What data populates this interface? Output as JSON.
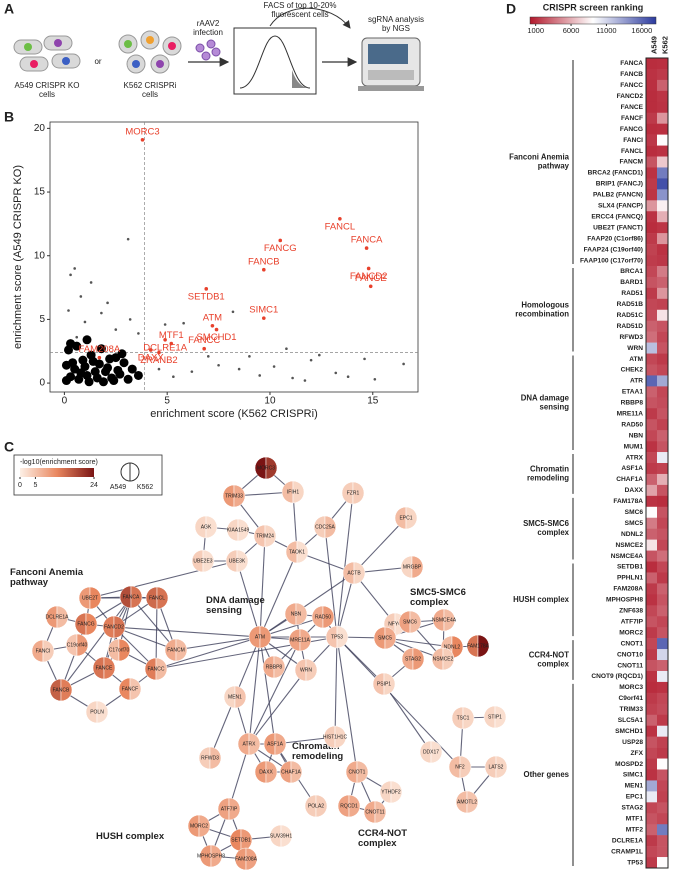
{
  "panel_labels": [
    "A",
    "B",
    "C",
    "D"
  ],
  "schematic": {
    "cells_a": "A549 CRISPR KO cells",
    "or": "or",
    "cells_k": "K562 CRISPRi cells",
    "infection": "rAAV2 infection",
    "facs": "FACS of top 10-20% fluorescent cells",
    "ngs": "sgRNA analysis by NGS"
  },
  "chart_data": [
    {
      "type": "scatter",
      "xlabel": "enrichment score (K562 CRISPRi)",
      "ylabel": "enrichment score (A549 CRISPR KO)",
      "xlim": [
        -0.7,
        17.2
      ],
      "ylim": [
        -0.7,
        20.5
      ],
      "xticks": [
        0,
        5,
        10,
        15
      ],
      "yticks": [
        0,
        5,
        10,
        15,
        20
      ],
      "cutoff_x": 3.9,
      "cutoff_y": 2.4,
      "cloud": {
        "color": "#000000",
        "x": [
          0.1,
          0.3,
          0.5,
          0.7,
          0.9,
          1.1,
          1.3,
          1.5,
          1.7,
          1.9,
          2.1,
          2.3,
          2.5,
          2.7,
          2.9,
          3.1,
          0.2,
          0.4,
          0.6,
          0.8,
          1.0,
          1.2,
          1.4,
          1.6,
          1.8,
          2.0,
          2.2,
          2.4,
          2.6,
          2.8,
          3.3,
          3.6,
          0.1,
          0.3,
          1.1
        ],
        "y": [
          0.2,
          0.5,
          1.1,
          0.3,
          1.8,
          0.6,
          2.2,
          0.9,
          1.5,
          0.1,
          1.2,
          0.4,
          2.0,
          0.7,
          1.6,
          0.3,
          2.6,
          1.6,
          2.9,
          0.8,
          1.3,
          0.1,
          1.7,
          0.4,
          2.7,
          0.9,
          1.9,
          0.2,
          1.0,
          2.3,
          1.1,
          0.6,
          1.4,
          3.1,
          3.4
        ]
      },
      "outliers": {
        "color": "#555555",
        "x": [
          0.5,
          0.3,
          1.3,
          0.8,
          2.1,
          3.1,
          1.8,
          0.2,
          3.2,
          4.9,
          5.8,
          8.2,
          7.0,
          7.5,
          8.5,
          9.5,
          10.2,
          11.1,
          12.0,
          12.4,
          13.2,
          14.6,
          15.1,
          16.5,
          6.2,
          9.0,
          10.8,
          4.6,
          5.3,
          11.7,
          13.8,
          3.6,
          2.5,
          1.0,
          0.6
        ],
        "y": [
          9.0,
          8.5,
          7.9,
          6.8,
          6.3,
          11.3,
          5.5,
          5.7,
          5.0,
          4.6,
          4.7,
          5.6,
          2.1,
          1.4,
          1.1,
          0.6,
          1.3,
          0.4,
          1.8,
          2.2,
          0.8,
          1.9,
          0.3,
          1.5,
          0.9,
          2.1,
          2.7,
          1.1,
          0.5,
          0.2,
          0.5,
          3.9,
          4.2,
          4.8,
          3.6
        ]
      },
      "hits": {
        "color": "#e8412c",
        "labels": [
          "MORC3",
          "FANCL",
          "FANCA",
          "FANCG",
          "FANCB",
          "FANCD2",
          "FANCE",
          "SETDB1",
          "SIMC1",
          "SMCHD1",
          "ATM",
          "DCLRE1A",
          "MTF1",
          "DAXX",
          "FAM208A",
          "ZRANB2",
          "FANCC"
        ],
        "x": [
          3.8,
          13.4,
          14.7,
          10.5,
          9.7,
          14.8,
          14.9,
          6.9,
          9.7,
          7.4,
          7.2,
          4.9,
          5.2,
          4.2,
          1.7,
          4.6,
          6.8
        ],
        "y": [
          19.1,
          12.9,
          10.6,
          11.2,
          8.9,
          9.0,
          7.6,
          7.4,
          5.1,
          4.2,
          4.5,
          3.4,
          3.1,
          2.6,
          2.0,
          2.4,
          2.7
        ]
      }
    },
    {
      "type": "heatmap",
      "title": "CRISPR screen ranking",
      "columns": [
        "A549",
        "K562"
      ],
      "clim": [
        200,
        18000
      ],
      "colorbar_ticks": [
        1000,
        6000,
        11000,
        16000
      ],
      "colors": [
        "#b2182b",
        "#ffffff",
        "#2b3a9e"
      ],
      "groups": [
        "Fanconi Anemia pathway",
        "Homologous recombination",
        "DNA damage sensing",
        "Chromatin remodeling",
        "SMC5-SMC6 complex",
        "HUSH complex",
        "CCR4-NOT complex",
        "Other genes"
      ],
      "rows": [
        "FANCA",
        "FANCB",
        "FANCC",
        "FANCD2",
        "FANCE",
        "FANCF",
        "FANCG",
        "FANCI",
        "FANCL",
        "FANCM",
        "BRCA2 (FANCD1)",
        "BRIP1 (FANCJ)",
        "PALB2 (FANCN)",
        "SLX4 (FANCP)",
        "ERCC4 (FANCQ)",
        "UBE2T (FANCT)",
        "FAAP20 (C1orf86)",
        "FAAP24 (C19orf40)",
        "FAAP100 (C17orf70)",
        "BRCA1",
        "BARD1",
        "RAD51",
        "RAD51B",
        "RAD51C",
        "RAD51D",
        "RFWD3",
        "WRN",
        "ATM",
        "CHEK2",
        "ATR",
        "ETAA1",
        "RBBP8",
        "MRE11A",
        "RAD50",
        "NBN",
        "MUM1",
        "ATRX",
        "ASF1A",
        "CHAF1A",
        "DAXX",
        "FAM178A",
        "SMC6",
        "SMC5",
        "NDNL2",
        "NSMCE2",
        "NSMCE4A",
        "SETDB1",
        "PPHLN1",
        "FAM208A",
        "MPHOSPH8",
        "ZNF638",
        "ATF7IP",
        "MORC2",
        "CNOT1",
        "CNOT10",
        "CNOT11",
        "CNOT9 (RQCD1)",
        "MORC3",
        "C9orf41",
        "TRIM33",
        "SLC5A1",
        "SMCHD1",
        "USP28",
        "ZFX",
        "MOSPD2",
        "SIMC1",
        "MEN1",
        "EPC1",
        "STAG2",
        "MTF1",
        "MTF2",
        "DCLRE1A",
        "CRAMP1L",
        "TP53"
      ],
      "values": [
        [
          1000,
          1100
        ],
        [
          1200,
          1500
        ],
        [
          1100,
          3000
        ],
        [
          1000,
          1300
        ],
        [
          1000,
          1200
        ],
        [
          1500,
          5000
        ],
        [
          1000,
          1100
        ],
        [
          1400,
          9000
        ],
        [
          1000,
          1200
        ],
        [
          2500,
          7000
        ],
        [
          1200,
          15000
        ],
        [
          1500,
          17000
        ],
        [
          1300,
          14000
        ],
        [
          5000,
          8500
        ],
        [
          1200,
          6000
        ],
        [
          1000,
          1300
        ],
        [
          1500,
          5000
        ],
        [
          1800,
          1200
        ],
        [
          1600,
          1400
        ],
        [
          2000,
          4000
        ],
        [
          2500,
          3000
        ],
        [
          1500,
          5000
        ],
        [
          2000,
          1800
        ],
        [
          2200,
          8000
        ],
        [
          3000,
          2500
        ],
        [
          3500,
          2000
        ],
        [
          12000,
          2500
        ],
        [
          2000,
          1500
        ],
        [
          2500,
          2000
        ],
        [
          16000,
          13000
        ],
        [
          3000,
          2000
        ],
        [
          2500,
          2200
        ],
        [
          1500,
          2500
        ],
        [
          2500,
          1800
        ],
        [
          2000,
          3000
        ],
        [
          1200,
          2500
        ],
        [
          2000,
          10000
        ],
        [
          1500,
          1800
        ],
        [
          3000,
          6000
        ],
        [
          5500,
          2500
        ],
        [
          1200,
          1000
        ],
        [
          9000,
          2500
        ],
        [
          4000,
          2000
        ],
        [
          3000,
          2500
        ],
        [
          8000,
          2000
        ],
        [
          2500,
          3500
        ],
        [
          1000,
          2000
        ],
        [
          3000,
          1500
        ],
        [
          1500,
          3000
        ],
        [
          1200,
          2500
        ],
        [
          2000,
          3000
        ],
        [
          2500,
          2000
        ],
        [
          1500,
          2500
        ],
        [
          2000,
          16000
        ],
        [
          1500,
          11000
        ],
        [
          2500,
          3000
        ],
        [
          1200,
          10000
        ],
        [
          1000,
          1200
        ],
        [
          1500,
          2000
        ],
        [
          1800,
          2200
        ],
        [
          3000,
          1500
        ],
        [
          1200,
          10000
        ],
        [
          2500,
          1800
        ],
        [
          2000,
          1500
        ],
        [
          1500,
          9000
        ],
        [
          1200,
          2500
        ],
        [
          13000,
          2000
        ],
        [
          10000,
          1800
        ],
        [
          2000,
          2500
        ],
        [
          2500,
          2000
        ],
        [
          3000,
          15000
        ],
        [
          1500,
          2500
        ],
        [
          2000,
          2500
        ],
        [
          1500,
          9000
        ]
      ]
    }
  ],
  "network": {
    "legend_title": "-log10(enrichment score)",
    "legend_ticks": [
      0,
      5,
      24
    ],
    "clim": [
      0,
      24
    ],
    "legend_a": "A549",
    "legend_k": "K562",
    "colors": [
      "#fdf0e6",
      "#e9875f",
      "#7a1414"
    ],
    "groups": [
      "Fanconi Anemia pathway",
      "DNA damage sensing",
      "SMC5-SMC6 complex",
      "Chromatin remodeling",
      "HUSH complex",
      "CCR4-NOT complex"
    ],
    "nodes": [
      {
        "label": "MORC3",
        "a549": 24,
        "k562": 20
      },
      {
        "label": "TRIM33",
        "a549": 10,
        "k562": 8
      },
      {
        "label": "IFIH1",
        "a549": 6,
        "k562": 3
      },
      {
        "label": "FZR1",
        "a549": 4,
        "k562": 4
      },
      {
        "label": "AGK",
        "a549": 3,
        "k562": 2
      },
      {
        "label": "KIAA1549",
        "a549": 3,
        "k562": 2
      },
      {
        "label": "TRIM24",
        "a549": 5,
        "k562": 3
      },
      {
        "label": "CDC25A",
        "a549": 4,
        "k562": 6
      },
      {
        "label": "EPC1",
        "a549": 6,
        "k562": 3
      },
      {
        "label": "TAOK1",
        "a549": 6,
        "k562": 2
      },
      {
        "label": "UBE2E3",
        "a549": 4,
        "k562": 2
      },
      {
        "label": "UBE3K",
        "a549": 4,
        "k562": 2
      },
      {
        "label": "ACTB",
        "a549": 6,
        "k562": 3
      },
      {
        "label": "MRGBP",
        "a549": 3,
        "k562": 8
      },
      {
        "label": "UBE2T",
        "a549": 10,
        "k562": 12
      },
      {
        "label": "FANCA",
        "a549": 18,
        "k562": 14
      },
      {
        "label": "FANCL",
        "a549": 15,
        "k562": 14
      },
      {
        "label": "DCLRE1A",
        "a549": 10,
        "k562": 6
      },
      {
        "label": "FANCG",
        "a549": 14,
        "k562": 12
      },
      {
        "label": "FANCD2",
        "a549": 13,
        "k562": 14
      },
      {
        "label": "FANCI",
        "a549": 8,
        "k562": 4
      },
      {
        "label": "C19orf40",
        "a549": 5,
        "k562": 10
      },
      {
        "label": "C17orf70",
        "a549": 6,
        "k562": 12
      },
      {
        "label": "FANCM",
        "a549": 8,
        "k562": 6
      },
      {
        "label": "FANCB",
        "a549": 16,
        "k562": 13
      },
      {
        "label": "FANCE",
        "a549": 14,
        "k562": 13
      },
      {
        "label": "FANCC",
        "a549": 13,
        "k562": 6
      },
      {
        "label": "FANCF",
        "a549": 12,
        "k562": 5
      },
      {
        "label": "POLN",
        "a549": 3,
        "k562": 2
      },
      {
        "label": "NBN",
        "a549": 8,
        "k562": 6
      },
      {
        "label": "RAD50",
        "a549": 8,
        "k562": 10
      },
      {
        "label": "NFYC",
        "a549": 4,
        "k562": 2
      },
      {
        "label": "ATM",
        "a549": 10,
        "k562": 10
      },
      {
        "label": "MRE11A",
        "a549": 9,
        "k562": 8
      },
      {
        "label": "TP53",
        "a549": 5,
        "k562": 2
      },
      {
        "label": "SMC5",
        "a549": 10,
        "k562": 8
      },
      {
        "label": "SMC6",
        "a549": 9,
        "k562": 6
      },
      {
        "label": "NSMCE4A",
        "a549": 8,
        "k562": 6
      },
      {
        "label": "NDNL2",
        "a549": 6,
        "k562": 12
      },
      {
        "label": "FAM178A",
        "a549": 14,
        "k562": 24
      },
      {
        "label": "STAG2",
        "a549": 8,
        "k562": 10
      },
      {
        "label": "NSMCE2",
        "a549": 6,
        "k562": 4
      },
      {
        "label": "RBBP8",
        "a549": 8,
        "k562": 6
      },
      {
        "label": "WRN",
        "a549": 5,
        "k562": 4
      },
      {
        "label": "PSIP1",
        "a549": 5,
        "k562": 3
      },
      {
        "label": "MEN1",
        "a549": 3,
        "k562": 5
      },
      {
        "label": "ATRX",
        "a549": 8,
        "k562": 6
      },
      {
        "label": "ASF1A",
        "a549": 10,
        "k562": 8
      },
      {
        "label": "HIST1H1C",
        "a549": 4,
        "k562": 3
      },
      {
        "label": "RFWD3",
        "a549": 4,
        "k562": 6
      },
      {
        "label": "DAXX",
        "a549": 10,
        "k562": 8
      },
      {
        "label": "CHAF1A",
        "a549": 9,
        "k562": 6
      },
      {
        "label": "DDX17",
        "a549": 3,
        "k562": 2
      },
      {
        "label": "POLA2",
        "a549": 4,
        "k562": 4
      },
      {
        "label": "ATF7IP",
        "a549": 9,
        "k562": 8
      },
      {
        "label": "MORC2",
        "a549": 10,
        "k562": 8
      },
      {
        "label": "SETDB1",
        "a549": 12,
        "k562": 10
      },
      {
        "label": "SUV39H1",
        "a549": 3,
        "k562": 2
      },
      {
        "label": "MPHOSPH8",
        "a549": 10,
        "k562": 8
      },
      {
        "label": "FAM208A",
        "a549": 10,
        "k562": 9
      },
      {
        "label": "CNOT1",
        "a549": 8,
        "k562": 6
      },
      {
        "label": "YTHDF2",
        "a549": 3,
        "k562": 2
      },
      {
        "label": "RQCD1",
        "a549": 9,
        "k562": 8
      },
      {
        "label": "CNOT11",
        "a549": 8,
        "k562": 6
      },
      {
        "label": "TSC1",
        "a549": 4,
        "k562": 3
      },
      {
        "label": "STIP1",
        "a549": 3,
        "k562": 2
      },
      {
        "label": "NF2",
        "a549": 6,
        "k562": 4
      },
      {
        "label": "LATS2",
        "a549": 4,
        "k562": 3
      },
      {
        "label": "AMOTL2",
        "a549": 6,
        "k562": 5
      }
    ]
  }
}
